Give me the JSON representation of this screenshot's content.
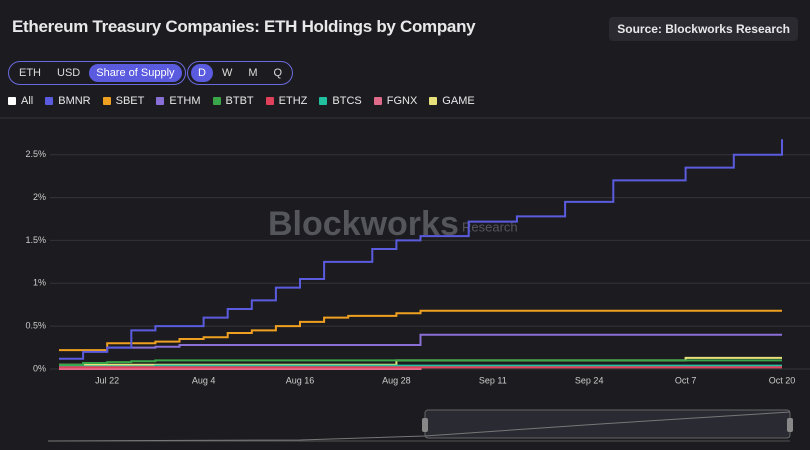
{
  "chart_data": {
    "type": "line",
    "title": "Ethereum Treasury Companies: ETH Holdings by Company",
    "source": "Source: Blockworks Research",
    "watermark": "Blockworks",
    "watermark_sub": "Research",
    "units": [
      "ETH",
      "USD",
      "Share of Supply"
    ],
    "active_unit": 2,
    "periods": [
      "D",
      "W",
      "M",
      "Q"
    ],
    "active_period": 0,
    "legend_all": "All",
    "categories": [
      null,
      null,
      "Jul 22",
      null,
      null,
      null,
      "Aug 4",
      null,
      null,
      null,
      "Aug 16",
      null,
      null,
      null,
      "Aug 28",
      null,
      null,
      null,
      "Sep 11",
      null,
      null,
      null,
      "Sep 24",
      null,
      null,
      null,
      "Oct 7",
      null,
      null,
      null,
      "Oct 20"
    ],
    "ylim": [
      0,
      2.8
    ],
    "yticks": [
      {
        "value": 0,
        "label": "0%"
      },
      {
        "value": 0.5,
        "label": "0.5%"
      },
      {
        "value": 1,
        "label": "1%"
      },
      {
        "value": 1.5,
        "label": "1.5%"
      },
      {
        "value": 2,
        "label": "2%"
      },
      {
        "value": 2.5,
        "label": "2.5%"
      }
    ],
    "grid": true,
    "series": [
      {
        "name": "BMNR",
        "color": "#5b5be0",
        "values": [
          0.12,
          0.2,
          0.25,
          0.45,
          0.5,
          0.5,
          0.6,
          0.7,
          0.8,
          0.95,
          1.05,
          1.25,
          1.25,
          1.4,
          1.5,
          1.55,
          1.55,
          1.72,
          1.72,
          1.78,
          1.78,
          1.95,
          1.95,
          2.2,
          2.2,
          2.2,
          2.35,
          2.35,
          2.5,
          2.5,
          2.68
        ]
      },
      {
        "name": "SBET",
        "color": "#f0a020",
        "values": [
          0.22,
          0.22,
          0.3,
          0.3,
          0.32,
          0.35,
          0.37,
          0.42,
          0.45,
          0.5,
          0.55,
          0.6,
          0.62,
          0.62,
          0.65,
          0.68,
          0.68,
          0.68,
          0.68,
          0.68,
          0.68,
          0.68,
          0.68,
          0.68,
          0.68,
          0.68,
          0.68,
          0.68,
          0.68,
          0.68,
          0.68
        ]
      },
      {
        "name": "ETHM",
        "color": "#8a6fd6",
        "values": [
          null,
          null,
          0.25,
          0.25,
          0.26,
          0.28,
          0.28,
          0.28,
          0.28,
          0.28,
          0.28,
          0.28,
          0.28,
          0.28,
          0.28,
          0.4,
          0.4,
          0.4,
          0.4,
          0.4,
          0.4,
          0.4,
          0.4,
          0.4,
          0.4,
          0.4,
          0.4,
          0.4,
          0.4,
          0.4,
          0.4
        ]
      },
      {
        "name": "BTBT",
        "color": "#3aa64a",
        "values": [
          0.05,
          0.07,
          0.08,
          0.09,
          0.1,
          0.1,
          0.1,
          0.1,
          0.1,
          0.1,
          0.1,
          0.1,
          0.1,
          0.1,
          0.1,
          0.1,
          0.1,
          0.1,
          0.1,
          0.1,
          0.1,
          0.1,
          0.1,
          0.1,
          0.1,
          0.1,
          0.1,
          0.1,
          0.1,
          0.1,
          0.1
        ]
      },
      {
        "name": "ETHZ",
        "color": "#e0405a",
        "values": [
          0.02,
          0.02,
          0.02,
          0.02,
          0.02,
          0.02,
          0.02,
          0.02,
          0.02,
          0.02,
          0.02,
          0.02,
          0.02,
          0.02,
          0.02,
          0.02,
          0.02,
          0.02,
          0.02,
          0.02,
          0.02,
          0.02,
          0.02,
          0.02,
          0.02,
          0.02,
          0.02,
          0.02,
          0.02,
          0.02,
          0.02
        ]
      },
      {
        "name": "BTCS",
        "color": "#20c0a0",
        "values": [
          0.03,
          0.03,
          0.03,
          0.03,
          0.04,
          0.04,
          0.04,
          0.04,
          0.04,
          0.04,
          0.04,
          0.04,
          0.04,
          0.04,
          0.04,
          0.04,
          0.04,
          0.04,
          0.04,
          0.04,
          0.04,
          0.04,
          0.04,
          0.04,
          0.04,
          0.04,
          0.04,
          0.04,
          0.04,
          0.04,
          0.04
        ]
      },
      {
        "name": "FGNX",
        "color": "#e06a8a",
        "values": [
          0,
          0,
          0,
          0,
          0,
          0,
          0,
          0,
          0,
          0,
          0,
          0,
          0,
          0,
          0,
          0.02,
          0.02,
          0.02,
          0.02,
          0.02,
          0.02,
          0.02,
          0.02,
          0.02,
          0.02,
          0.02,
          0.02,
          0.02,
          0.02,
          0.02,
          0.02
        ]
      },
      {
        "name": "GAME",
        "color": "#e8e07a",
        "values": [
          0.05,
          0.05,
          0.05,
          0.05,
          0.05,
          0.05,
          0.05,
          0.05,
          0.05,
          0.05,
          0.05,
          0.05,
          0.05,
          0.05,
          0.1,
          0.1,
          0.1,
          0.1,
          0.1,
          0.1,
          0.1,
          0.1,
          0.1,
          0.1,
          0.1,
          0.1,
          0.13,
          0.13,
          0.13,
          0.13,
          0.13
        ]
      }
    ]
  }
}
